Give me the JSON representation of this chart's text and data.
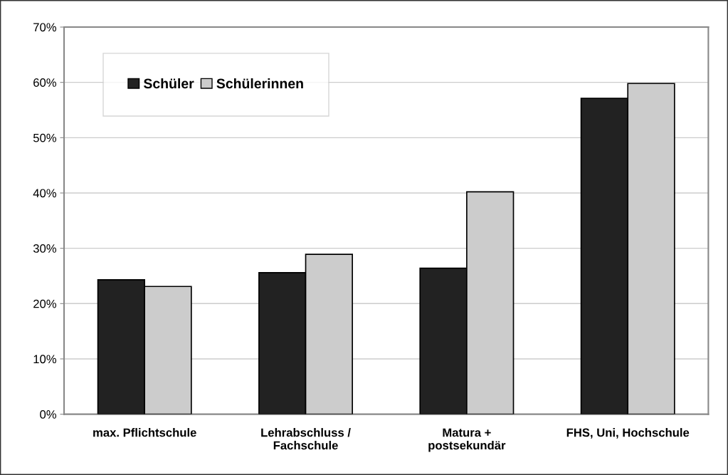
{
  "chart_data": {
    "type": "bar",
    "categories": [
      "max. Pflichtschule",
      "Lehrabschluss /\nFachschule",
      "Matura +\npostsekundär",
      "FHS, Uni, Hochschule"
    ],
    "series": [
      {
        "name": "Schüler",
        "color": "#222222",
        "values": [
          24.3,
          25.6,
          26.4,
          57.1
        ]
      },
      {
        "name": "Schülerinnen",
        "color": "#cccccc",
        "values": [
          23.1,
          28.9,
          40.2,
          59.8
        ]
      }
    ],
    "ylim": [
      0,
      70
    ],
    "yticks": [
      {
        "value": 0,
        "label": "0%"
      },
      {
        "value": 10,
        "label": "10%"
      },
      {
        "value": 20,
        "label": "20%"
      },
      {
        "value": 30,
        "label": "30%"
      },
      {
        "value": 40,
        "label": "40%"
      },
      {
        "value": 50,
        "label": "50%"
      },
      {
        "value": 60,
        "label": "60%"
      },
      {
        "value": 70,
        "label": "70%"
      }
    ],
    "grid": "y",
    "legend": "top left"
  }
}
